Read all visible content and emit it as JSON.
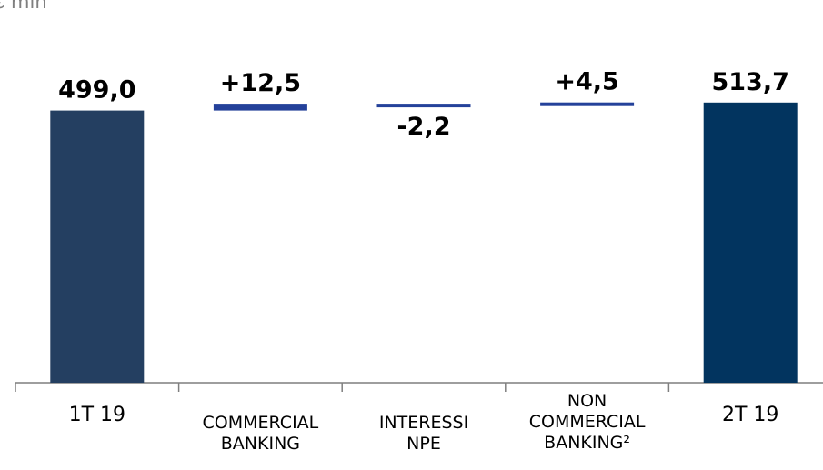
{
  "unit_label": "€ mln",
  "chart_data": {
    "type": "bar",
    "subtype": "waterfall",
    "categories": [
      [
        "1T 19"
      ],
      [
        "COMMERCIAL",
        "BANKING"
      ],
      [
        "INTERESSI",
        "NPE"
      ],
      [
        "NON",
        "COMMERCIAL",
        "BANKING²"
      ],
      [
        "2T 19"
      ]
    ],
    "category_names": [
      "1T 19",
      "COMMERCIAL BANKING",
      "INTERESSI NPE",
      "NON COMMERCIAL BANKING²",
      "2T 19"
    ],
    "values": [
      499.0,
      12.5,
      -2.2,
      4.5,
      513.7
    ],
    "kinds": [
      "total",
      "delta",
      "delta",
      "delta",
      "total"
    ],
    "data_labels": [
      "499,0",
      "+12,5",
      "-2,2",
      "+4,5",
      "513,7"
    ],
    "colors": {
      "start_total": "#243f61",
      "delta": "#24419a",
      "end_total": "#02345f",
      "axis": "#7f7f7f"
    },
    "grid": false,
    "legend": "none"
  }
}
